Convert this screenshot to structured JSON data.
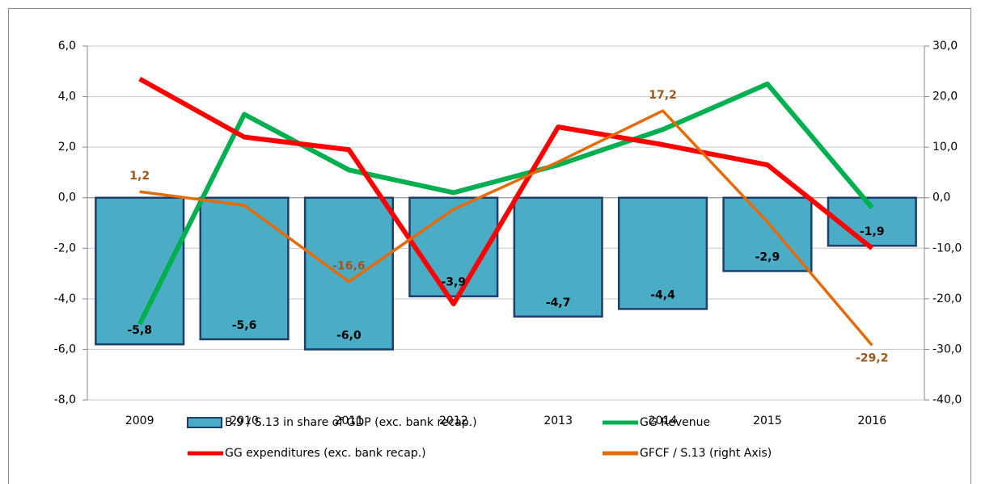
{
  "chart_data": {
    "type": "bar-line",
    "categories": [
      "2009",
      "2010",
      "2011",
      "2012",
      "2013",
      "2014",
      "2015",
      "2016"
    ],
    "ylim": [
      -8,
      6
    ],
    "yticks": [
      {
        "value": -8,
        "label": "-8,0"
      },
      {
        "value": -6,
        "label": "-6,0"
      },
      {
        "value": -4,
        "label": "-4,0"
      },
      {
        "value": -2,
        "label": "-2,0"
      },
      {
        "value": 0,
        "label": "0,0"
      },
      {
        "value": 2,
        "label": "2,0"
      },
      {
        "value": 4,
        "label": "4,0"
      },
      {
        "value": 6,
        "label": "6,0"
      }
    ],
    "y2lim": [
      -40,
      30
    ],
    "y2ticks": [
      {
        "value": -40,
        "label": "-40,0"
      },
      {
        "value": -30,
        "label": "-30,0"
      },
      {
        "value": -20,
        "label": "-20,0"
      },
      {
        "value": -10,
        "label": "-10,0"
      },
      {
        "value": 0,
        "label": "0,0"
      },
      {
        "value": 10,
        "label": "10,0"
      },
      {
        "value": 20,
        "label": "20,0"
      },
      {
        "value": 30,
        "label": "30,0"
      }
    ],
    "grid": true,
    "series": [
      {
        "name": "B.9 / S.13 in share of GDP (exc. bank recap.)",
        "type": "bar",
        "color": "#4bacc6",
        "values": [
          -5.8,
          -5.6,
          -6.0,
          -3.9,
          -4.7,
          -4.4,
          -2.9,
          -1.9
        ],
        "value_labels": [
          "-5,8",
          "-5,6",
          "-6,0",
          "-3,9",
          "-4,7",
          "-4,4",
          "-2,9",
          "-1,9"
        ]
      },
      {
        "name": "GG Revenue",
        "type": "line",
        "color": "#00b050",
        "values": [
          -5.0,
          3.3,
          1.1,
          0.2,
          1.3,
          2.7,
          4.5,
          -0.4
        ]
      },
      {
        "name": "GG expenditures (exc. bank recap.)",
        "type": "line",
        "color": "#ff0000",
        "values": [
          4.7,
          2.4,
          1.9,
          -4.2,
          2.8,
          2.1,
          1.3,
          -2.0
        ]
      },
      {
        "name": "GFCF / S.13 (right Axis)",
        "type": "line",
        "axis": "y2",
        "color": "#e36c09",
        "values": [
          1.2,
          -1.5,
          -16.6,
          -2.3,
          7.1,
          17.2,
          -4.8,
          -29.2
        ],
        "value_labels": [
          "1,2",
          null,
          "-16,6",
          null,
          null,
          "17,2",
          null,
          "-29,2"
        ]
      }
    ]
  }
}
